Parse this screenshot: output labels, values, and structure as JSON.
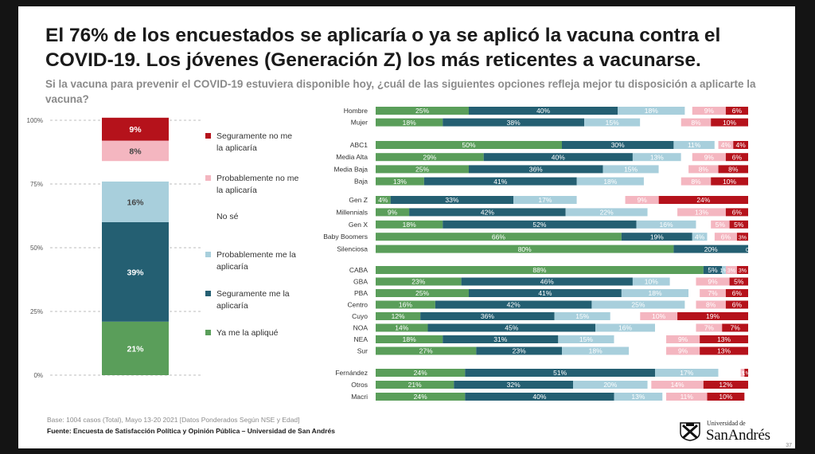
{
  "header": {
    "title": "El 76% de los encuestados se aplicaría o ya se aplicó la vacuna contra el COVID-19. Los jóvenes (Generación Z) los más reticentes a vacunarse.",
    "question": "Si la vacuna para prevenir el COVID-19 estuviera disponible hoy, ¿cuál de las siguientes opciones refleja mejor tu disposición a aplicarte la vacuna?"
  },
  "footer": {
    "note": "Base: 1004 casos (Total), Mayo 13-20 2021 [Datos Ponderados Según NSE y Edad]",
    "source": "Fuente: Encuesta de Satisfacción Política y Opinión Pública – Universidad de San Andrés",
    "page_number": "37"
  },
  "logo": {
    "small": "Universidad de",
    "big": "SanAndrés"
  },
  "colors": {
    "ya_me_la_aplique": "#5a9e5a",
    "seguramente_me_la_aplicaria": "#245f72",
    "probablemente_me_la_aplicaria": "#a8cfdc",
    "no_se": "#ffffff",
    "probablemente_no": "#f4b6c0",
    "seguramente_no": "#b5121b"
  },
  "chart_data": [
    {
      "type": "bar",
      "subtype": "stacked-100",
      "categories": [
        "Total"
      ],
      "yticks": [
        "0%",
        "25%",
        "50%",
        "75%",
        "100%"
      ],
      "ylim": [
        0,
        100
      ],
      "series": [
        {
          "name": "Ya me la apliqué",
          "key": "ya_me_la_aplique",
          "values": [
            21
          ],
          "labels": [
            "21%"
          ]
        },
        {
          "name": "Seguramente me la aplicaría",
          "key": "seguramente_me_la_aplicaria",
          "values": [
            39
          ],
          "labels": [
            "39%"
          ]
        },
        {
          "name": "Probablemente me la aplicaría",
          "key": "probablemente_me_la_aplicaria",
          "values": [
            16
          ],
          "labels": [
            "16%"
          ]
        },
        {
          "name": "No sé",
          "key": "no_se",
          "values": [
            8
          ],
          "labels": [
            ""
          ]
        },
        {
          "name": "Probablemente no me la aplicaría",
          "key": "probablemente_no",
          "values": [
            8
          ],
          "labels": [
            "8%"
          ]
        },
        {
          "name": "Seguramente no me la aplicaría",
          "key": "seguramente_no",
          "values": [
            9
          ],
          "labels": [
            "9%"
          ]
        }
      ],
      "legend": {
        "placement": "right",
        "order": [
          "seguramente_no",
          "probablemente_no",
          "no_se",
          "probablemente_me_la_aplicaria",
          "seguramente_me_la_aplicaria",
          "ya_me_la_aplique"
        ],
        "entries": {
          "seguramente_no": [
            "Seguramente no me",
            "la aplicaría"
          ],
          "probablemente_no": [
            "Probablemente no me",
            "la aplicaría"
          ],
          "no_se": [
            "No sé"
          ],
          "probablemente_me_la_aplicaria": [
            "Probablemente me la",
            "aplicaría"
          ],
          "seguramente_me_la_aplicaria": [
            "Seguramente me la",
            "aplicaría"
          ],
          "ya_me_la_aplique": [
            "Ya me la apliqué"
          ]
        }
      }
    },
    {
      "type": "bar",
      "subtype": "horizontal-stacked-100",
      "series_order": [
        "ya_me_la_aplique",
        "seguramente_me_la_aplicaria",
        "probablemente_me_la_aplicaria",
        "no_se",
        "probablemente_no",
        "seguramente_no"
      ],
      "groups": [
        {
          "rows": [
            {
              "category": "Hombre",
              "values": [
                25,
                40,
                18,
                2,
                9,
                6
              ],
              "labels": [
                "25%",
                "40%",
                "18%",
                "",
                "9%",
                "6%"
              ]
            },
            {
              "category": "Mujer",
              "values": [
                18,
                38,
                15,
                11,
                8,
                10
              ],
              "labels": [
                "18%",
                "38%",
                "15%",
                "",
                "8%",
                "10%"
              ]
            }
          ]
        },
        {
          "rows": [
            {
              "category": "ABC1",
              "values": [
                50,
                30,
                11,
                1,
                4,
                4
              ],
              "labels": [
                "50%",
                "30%",
                "11%",
                "",
                "4%",
                "4%"
              ]
            },
            {
              "category": "Media Alta",
              "values": [
                29,
                40,
                13,
                3,
                9,
                6
              ],
              "labels": [
                "29%",
                "40%",
                "13%",
                "",
                "9%",
                "6%"
              ]
            },
            {
              "category": "Media Baja",
              "values": [
                25,
                36,
                15,
                8,
                8,
                8
              ],
              "labels": [
                "25%",
                "36%",
                "15%",
                "",
                "8%",
                "8%"
              ]
            },
            {
              "category": "Baja",
              "values": [
                13,
                41,
                18,
                10,
                8,
                10
              ],
              "labels": [
                "13%",
                "41%",
                "18%",
                "",
                "8%",
                "10%"
              ]
            }
          ]
        },
        {
          "rows": [
            {
              "category": "Gen Z",
              "values": [
                4,
                33,
                17,
                13,
                9,
                24
              ],
              "labels": [
                "4%",
                "33%",
                "17%",
                "",
                "9%",
                "24%"
              ]
            },
            {
              "category": "Millennials",
              "values": [
                9,
                42,
                22,
                8,
                13,
                6
              ],
              "labels": [
                "9%",
                "42%",
                "22%",
                "",
                "13%",
                "6%"
              ]
            },
            {
              "category": "Gen X",
              "values": [
                18,
                52,
                16,
                4,
                5,
                5
              ],
              "labels": [
                "18%",
                "52%",
                "16%",
                "",
                "5%",
                "5%"
              ]
            },
            {
              "category": "Baby Boomers",
              "values": [
                66,
                19,
                4,
                2,
                6,
                3
              ],
              "labels": [
                "66%",
                "19%",
                "4%",
                "",
                "6%",
                "3%"
              ]
            },
            {
              "category": "Silenciosa",
              "values": [
                80,
                20,
                0,
                0,
                0,
                0
              ],
              "labels": [
                "80%",
                "20%",
                "0%",
                "",
                "",
                ""
              ]
            }
          ]
        },
        {
          "rows": [
            {
              "category": "CABA",
              "values": [
                88,
                5,
                1,
                0,
                3,
                3
              ],
              "labels": [
                "88%",
                "5%",
                "1%",
                "",
                "3%",
                "3%"
              ]
            },
            {
              "category": "GBA",
              "values": [
                23,
                46,
                10,
                7,
                9,
                5
              ],
              "labels": [
                "23%",
                "46%",
                "10%",
                "",
                "9%",
                "5%"
              ]
            },
            {
              "category": "PBA",
              "values": [
                25,
                41,
                18,
                3,
                7,
                6
              ],
              "labels": [
                "25%",
                "41%",
                "18%",
                "",
                "7%",
                "6%"
              ]
            },
            {
              "category": "Centro",
              "values": [
                16,
                42,
                25,
                3,
                8,
                6
              ],
              "labels": [
                "16%",
                "42%",
                "25%",
                "",
                "8%",
                "6%"
              ]
            },
            {
              "category": "Cuyo",
              "values": [
                12,
                36,
                15,
                8,
                10,
                19
              ],
              "labels": [
                "12%",
                "36%",
                "15%",
                "",
                "10%",
                "19%"
              ]
            },
            {
              "category": "NOA",
              "values": [
                14,
                45,
                16,
                11,
                7,
                7
              ],
              "labels": [
                "14%",
                "45%",
                "16%",
                "",
                "7%",
                "7%"
              ]
            },
            {
              "category": "NEA",
              "values": [
                18,
                31,
                15,
                14,
                9,
                13
              ],
              "labels": [
                "18%",
                "31%",
                "15%",
                "",
                "9%",
                "13%"
              ]
            },
            {
              "category": "Sur",
              "values": [
                27,
                23,
                18,
                10,
                9,
                13
              ],
              "labels": [
                "27%",
                "23%",
                "18%",
                "",
                "9%",
                "13%"
              ]
            }
          ]
        },
        {
          "rows": [
            {
              "category": "Fernández",
              "values": [
                24,
                51,
                17,
                6,
                1,
                1
              ],
              "labels": [
                "24%",
                "51%",
                "17%",
                "",
                "1%",
                "1%"
              ]
            },
            {
              "category": "Otros",
              "values": [
                21,
                32,
                20,
                1,
                14,
                12
              ],
              "labels": [
                "21%",
                "32%",
                "20%",
                "",
                "14%",
                "12%"
              ]
            },
            {
              "category": "Macri",
              "values": [
                24,
                40,
                13,
                1,
                11,
                10
              ],
              "labels": [
                "24%",
                "40%",
                "13%",
                "",
                "11%",
                "10%"
              ]
            }
          ]
        }
      ]
    }
  ]
}
